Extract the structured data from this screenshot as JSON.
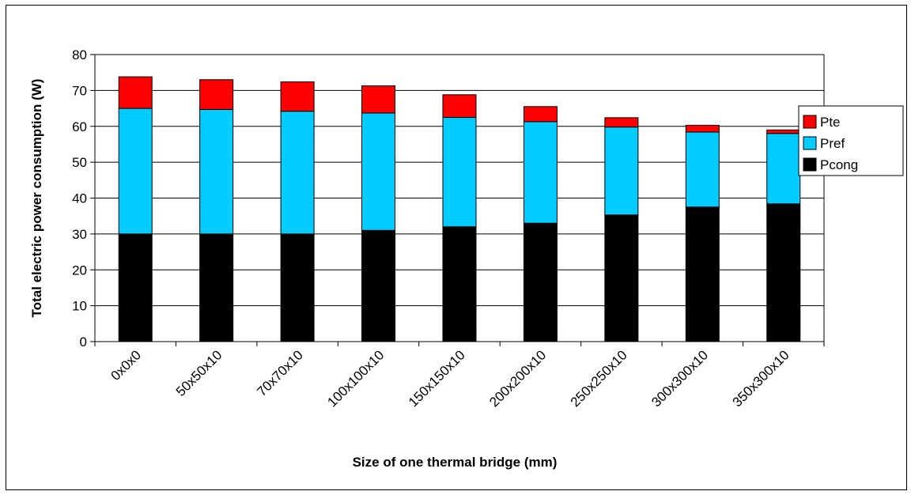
{
  "chart_data": {
    "type": "bar",
    "stacked": true,
    "categories": [
      "0x0x0",
      "50x50x10",
      "70x70x10",
      "100x100x10",
      "150x150x10",
      "200x200x10",
      "250x250x10",
      "300x300x10",
      "350x300x10"
    ],
    "series": [
      {
        "name": "Pcong",
        "color": "#000000",
        "values": [
          30,
          30,
          30,
          31,
          32,
          33,
          35.3,
          37.5,
          38.4
        ]
      },
      {
        "name": "Pref",
        "color": "#00ccff",
        "values": [
          35,
          34.7,
          34.2,
          32.7,
          30.5,
          28.3,
          24.5,
          20.9,
          19.6
        ]
      },
      {
        "name": "Pte",
        "color": "#ff0000",
        "values": [
          8.8,
          8.3,
          8.2,
          7.6,
          6.3,
          4.2,
          2.6,
          1.9,
          1.0
        ]
      }
    ],
    "legend_order": [
      "Pte",
      "Pref",
      "Pcong"
    ],
    "legend_position": "right",
    "xlabel": "Size of one thermal bridge (mm)",
    "ylabel": "Total electric power consumption (W)",
    "ylim": [
      0,
      80
    ],
    "yticks": [
      0,
      10,
      20,
      30,
      40,
      50,
      60,
      70,
      80
    ],
    "grid": true
  }
}
